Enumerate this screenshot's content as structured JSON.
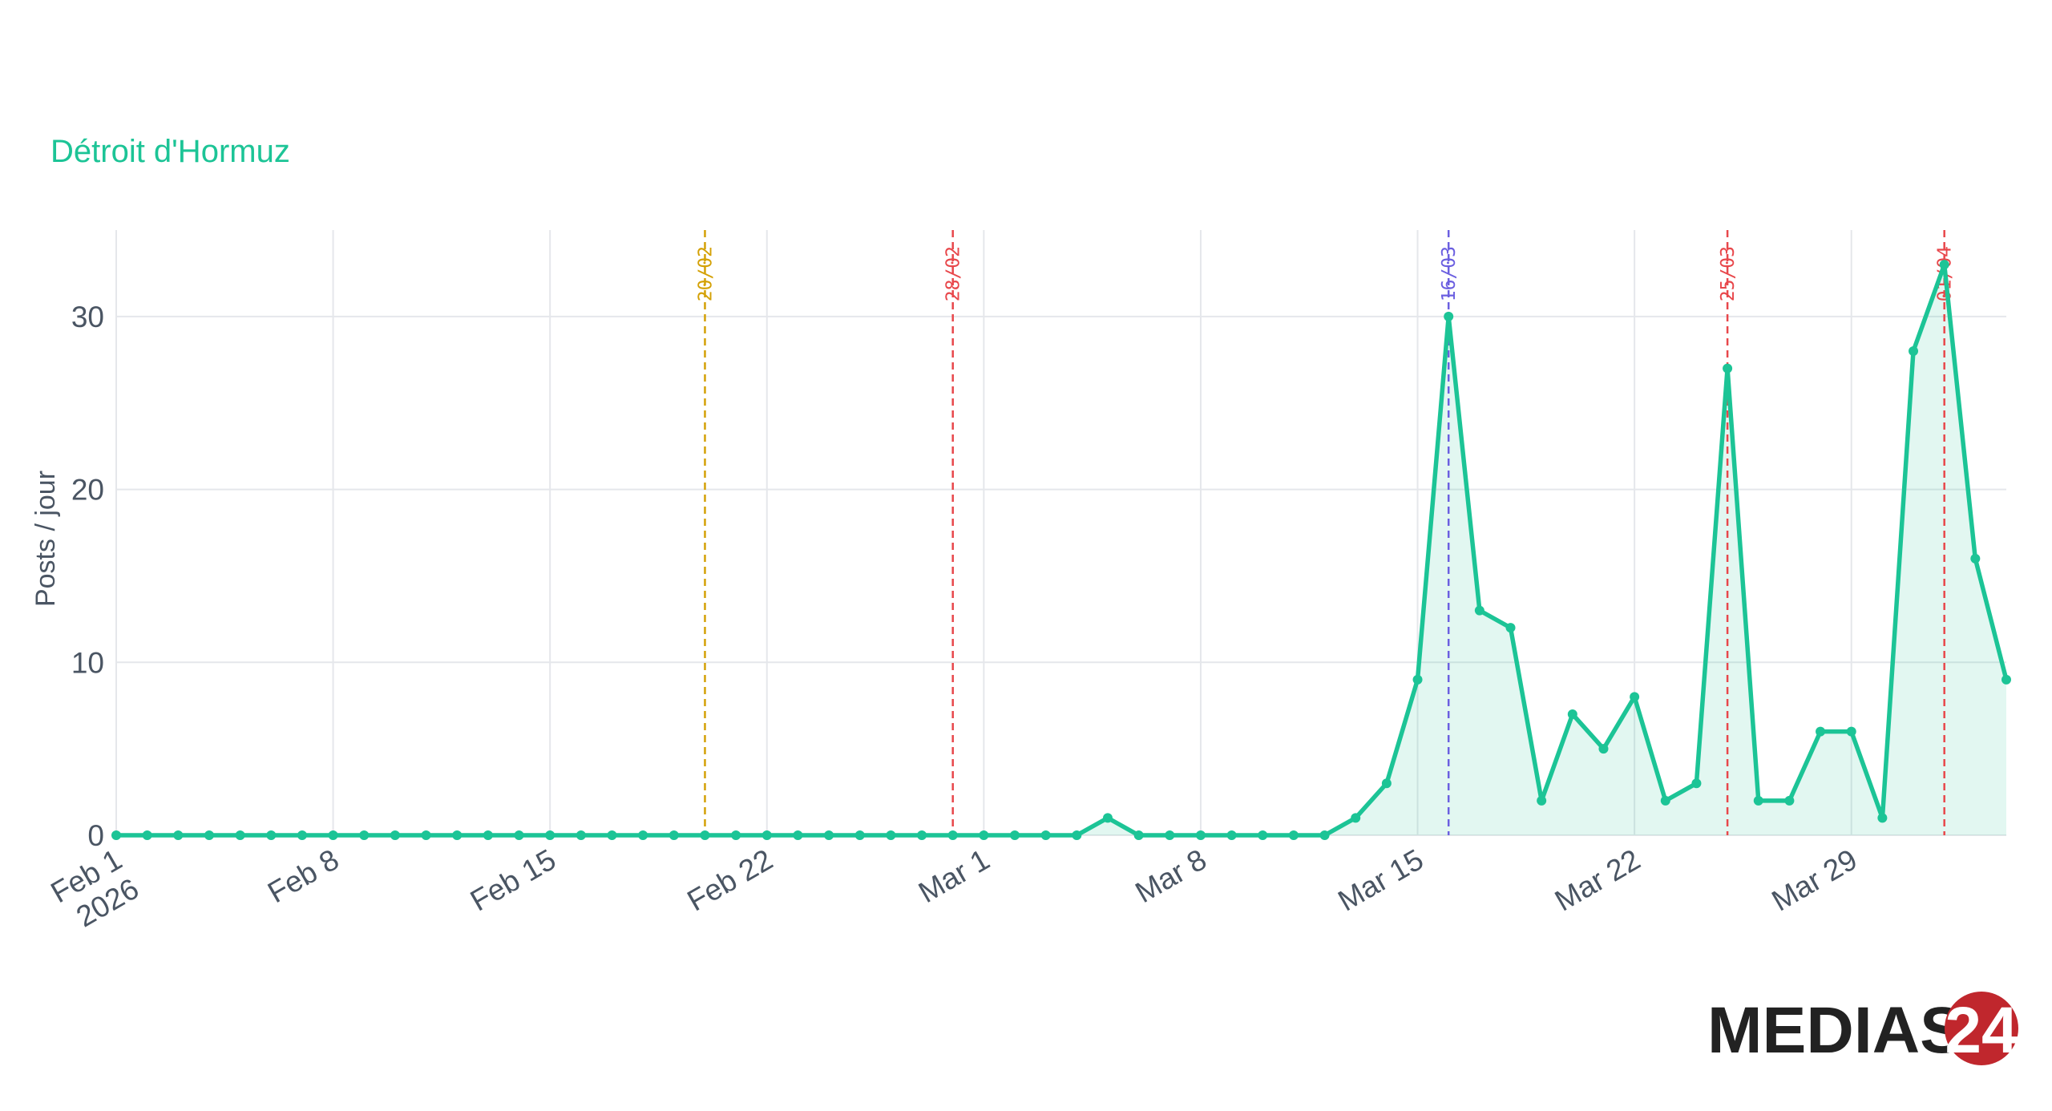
{
  "chart_data": {
    "type": "area",
    "title": "Détroit d'Hormuz",
    "ylabel": "Posts / jour",
    "xlabel": "",
    "grid": true,
    "ylim": [
      0,
      35
    ],
    "yticks": [
      0,
      10,
      20,
      30
    ],
    "xlim": [
      "2026-02-01",
      "2026-04-03"
    ],
    "xticks": [
      {
        "date": "2026-02-01",
        "lines": [
          "Feb 1",
          "2026"
        ]
      },
      {
        "date": "2026-02-08",
        "lines": [
          "Feb 8"
        ]
      },
      {
        "date": "2026-02-15",
        "lines": [
          "Feb 15"
        ]
      },
      {
        "date": "2026-02-22",
        "lines": [
          "Feb 22"
        ]
      },
      {
        "date": "2026-03-01",
        "lines": [
          "Mar 1"
        ]
      },
      {
        "date": "2026-03-08",
        "lines": [
          "Mar 8"
        ]
      },
      {
        "date": "2026-03-15",
        "lines": [
          "Mar 15"
        ]
      },
      {
        "date": "2026-03-22",
        "lines": [
          "Mar 22"
        ]
      },
      {
        "date": "2026-03-29",
        "lines": [
          "Mar 29"
        ]
      }
    ],
    "series": [
      {
        "color": "#1cc496",
        "x": [
          "2026-02-01",
          "2026-02-02",
          "2026-02-03",
          "2026-02-04",
          "2026-02-05",
          "2026-02-06",
          "2026-02-07",
          "2026-02-08",
          "2026-02-09",
          "2026-02-10",
          "2026-02-11",
          "2026-02-12",
          "2026-02-13",
          "2026-02-14",
          "2026-02-15",
          "2026-02-16",
          "2026-02-17",
          "2026-02-18",
          "2026-02-19",
          "2026-02-20",
          "2026-02-21",
          "2026-02-22",
          "2026-02-23",
          "2026-02-24",
          "2026-02-25",
          "2026-02-26",
          "2026-02-27",
          "2026-02-28",
          "2026-03-01",
          "2026-03-02",
          "2026-03-03",
          "2026-03-04",
          "2026-03-05",
          "2026-03-06",
          "2026-03-07",
          "2026-03-08",
          "2026-03-09",
          "2026-03-10",
          "2026-03-11",
          "2026-03-12",
          "2026-03-13",
          "2026-03-14",
          "2026-03-15",
          "2026-03-16",
          "2026-03-17",
          "2026-03-18",
          "2026-03-19",
          "2026-03-20",
          "2026-03-21",
          "2026-03-22",
          "2026-03-23",
          "2026-03-24",
          "2026-03-25",
          "2026-03-26",
          "2026-03-27",
          "2026-03-28",
          "2026-03-29",
          "2026-03-30",
          "2026-03-31",
          "2026-04-01",
          "2026-04-02",
          "2026-04-03"
        ],
        "values": [
          0,
          0,
          0,
          0,
          0,
          0,
          0,
          0,
          0,
          0,
          0,
          0,
          0,
          0,
          0,
          0,
          0,
          0,
          0,
          0,
          0,
          0,
          0,
          0,
          0,
          0,
          0,
          0,
          0,
          0,
          0,
          0,
          1,
          0,
          0,
          0,
          0,
          0,
          0,
          0,
          1,
          3,
          9,
          30,
          13,
          12,
          2,
          7,
          5,
          8,
          2,
          3,
          27,
          2,
          2,
          6,
          6,
          1,
          28,
          33,
          16,
          9
        ]
      }
    ],
    "events": [
      {
        "date": "2026-02-20",
        "label": "20/02",
        "color": "#d4a106"
      },
      {
        "date": "2026-02-28",
        "label": "28/02",
        "color": "#e8474b"
      },
      {
        "date": "2026-03-16",
        "label": "16/03",
        "color": "#6b5fe0"
      },
      {
        "date": "2026-03-25",
        "label": "25/03",
        "color": "#e8474b"
      },
      {
        "date": "2026-04-01",
        "label": "01/04",
        "color": "#e8474b"
      }
    ]
  },
  "colors": {
    "title": "#1cc496",
    "grid": "#e5e7eb",
    "axis_text": "#4a5563",
    "logo_text": "#222222",
    "logo_badge": "#c0272d"
  },
  "logo": {
    "text": "MEDIAS",
    "number": "24"
  }
}
